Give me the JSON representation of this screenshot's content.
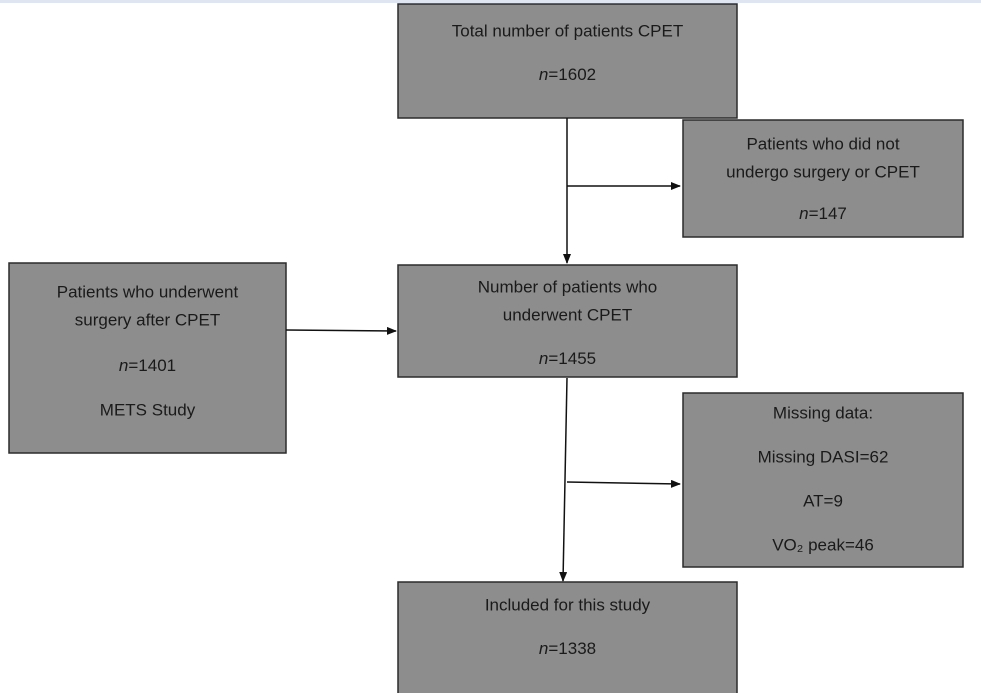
{
  "nodes": [
    {
      "lines": [
        "Total number of patients CPET",
        {
          "symbol": "n",
          "value": "=1602"
        }
      ]
    },
    {
      "lines": [
        "Patients who did not",
        "undergo surgery or CPET",
        {
          "symbol": "n",
          "value": "=147"
        }
      ]
    },
    {
      "lines": [
        "Patients who underwent",
        "surgery after CPET",
        {
          "symbol": "n",
          "value": "=1401"
        },
        "METS Study"
      ]
    },
    {
      "lines": [
        "Number of patients who",
        "underwent CPET",
        {
          "symbol": "n",
          "value": "=1455"
        }
      ]
    },
    {
      "lines": [
        "Missing data:",
        "Missing DASI=62",
        "AT=9",
        "VO₂ peak=46"
      ]
    },
    {
      "lines": [
        "Included for this study",
        {
          "symbol": "n",
          "value": "=1338"
        }
      ]
    }
  ]
}
